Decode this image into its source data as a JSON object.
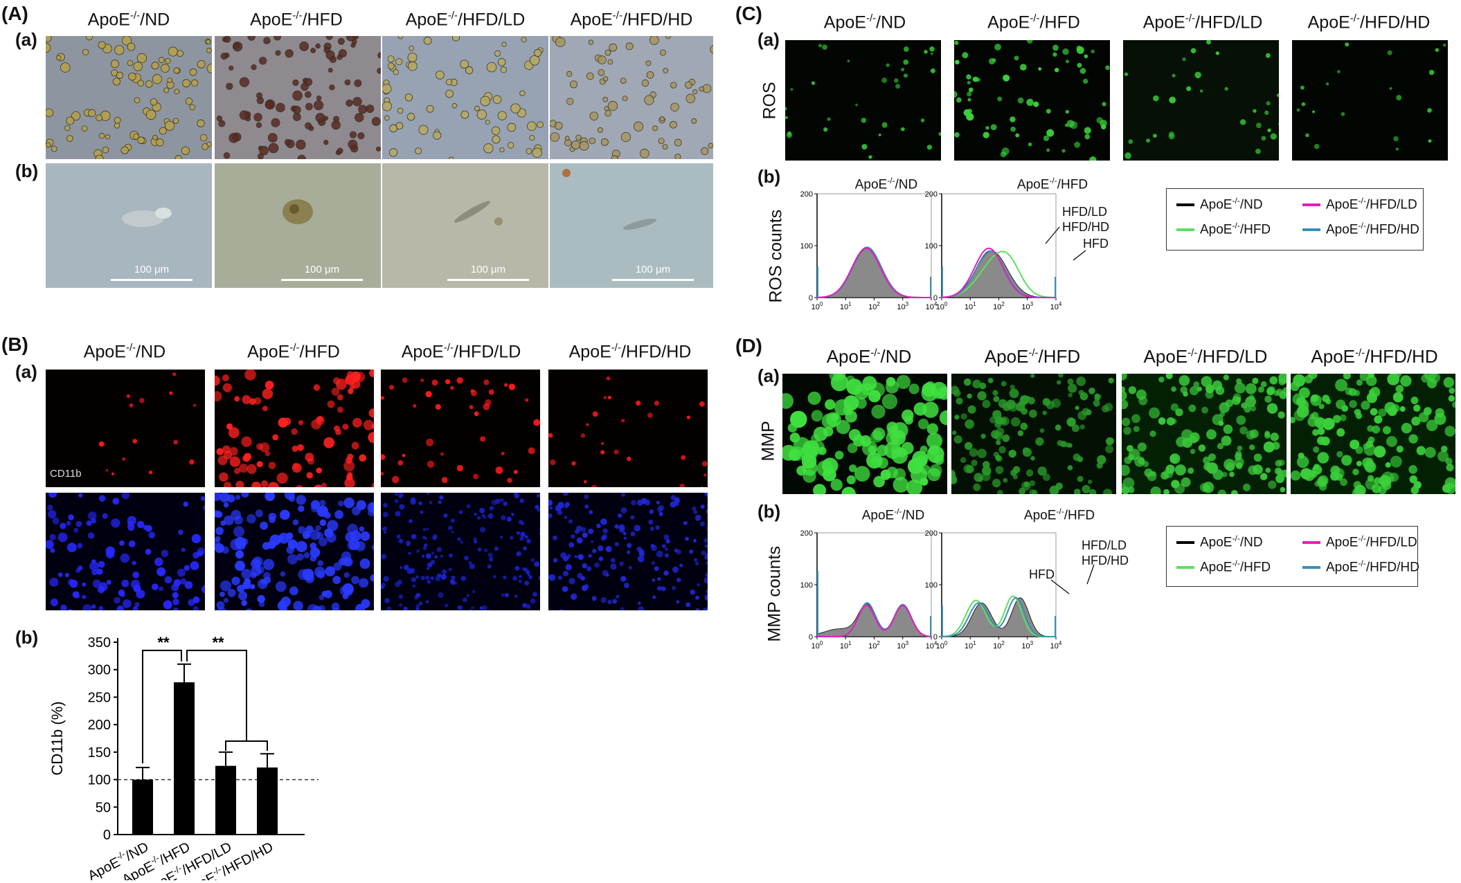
{
  "panels": {
    "A": {
      "label": "(A)",
      "sub_a": "(a)",
      "sub_b": "(b)",
      "columns": [
        "ApoE-/-/ND",
        "ApoE-/-/HFD",
        "ApoE-/-/HFD/LD",
        "ApoE-/-/HFD/HD"
      ],
      "scale_label": "100 μm"
    },
    "B": {
      "label": "(B)",
      "sub_a": "(a)",
      "sub_b": "(b)",
      "stain_label": "CD11b"
    },
    "C": {
      "label": "(C)",
      "sub_a": "(a)",
      "sub_b": "(b)",
      "row_label": "ROS",
      "hist_titles": [
        "ApoE-/-/ND",
        "ApoE-/-/HFD"
      ],
      "annotations": [
        "HFD/LD",
        "HFD/HD",
        "HFD"
      ]
    },
    "D": {
      "label": "(D)",
      "sub_a": "(a)",
      "sub_b": "(b)",
      "row_label": "MMP",
      "hist_titles": [
        "ApoE-/-/ND",
        "ApoE-/-/HFD"
      ],
      "annotations": [
        "HFD",
        "HFD/LD",
        "HFD/HD"
      ]
    }
  },
  "group_parts": [
    {
      "prefix": "ApoE",
      "sup": "-/-",
      "suffix": "/ND"
    },
    {
      "prefix": "ApoE",
      "sup": "-/-",
      "suffix": "/HFD"
    },
    {
      "prefix": "ApoE",
      "sup": "-/-",
      "suffix": "/HFD/LD"
    },
    {
      "prefix": "ApoE",
      "sup": "-/-",
      "suffix": "/HFD/HD"
    }
  ],
  "legend": {
    "items": [
      {
        "label": "ApoE-/-/ND",
        "color": "#000000"
      },
      {
        "label": "ApoE-/-/HFD/LD",
        "color": "#e020c0"
      },
      {
        "label": "ApoE-/-/HFD",
        "color": "#5de05d"
      },
      {
        "label": "ApoE-/-/HFD/HD",
        "color": "#3a8fb5"
      }
    ]
  },
  "histogram_axis": {
    "y_ticks": [
      "0",
      "100",
      "200"
    ],
    "x_ticks": [
      "10^0",
      "10^1",
      "10^2",
      "10^3",
      "10^4"
    ]
  },
  "ros_ylabel": "ROS counts",
  "mmp_ylabel": "MMP counts",
  "chart_data": {
    "type": "bar",
    "categories": [
      "ApoE-/-/ND",
      "ApoE-/-/HFD",
      "ApoE-/-/HFD/LD",
      "ApoE-/-/HFD/HD"
    ],
    "values": [
      100,
      277,
      125,
      122
    ],
    "errors": [
      22,
      33,
      25,
      25
    ],
    "ylabel": "CD11b (%)",
    "ylim": [
      0,
      350
    ],
    "yticks": [
      0,
      50,
      100,
      150,
      200,
      250,
      300,
      350
    ],
    "reference_line": 100,
    "significance": [
      "**",
      "**"
    ],
    "bar_color": "#000000"
  }
}
